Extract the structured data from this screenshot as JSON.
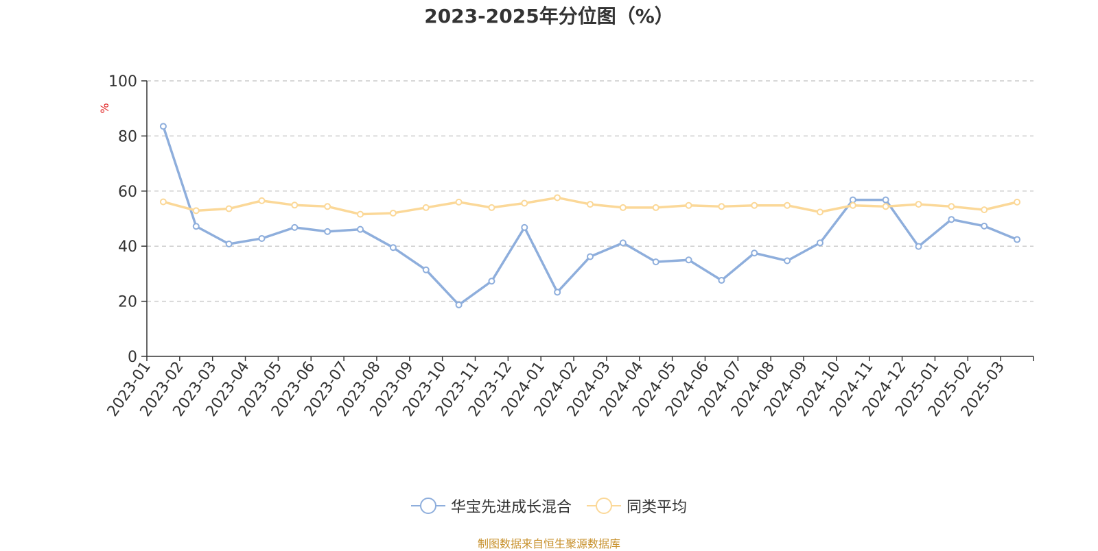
{
  "chart_data": {
    "type": "line",
    "title": "2023-2025年分位图（%）",
    "ylabel": "%",
    "ylim": [
      0,
      100
    ],
    "yticks": [
      0,
      20,
      40,
      60,
      80,
      100
    ],
    "grid": "horizontal dashed",
    "legend_position": "bottom",
    "categories": [
      "2023-01",
      "2023-02",
      "2023-03",
      "2023-04",
      "2023-05",
      "2023-06",
      "2023-07",
      "2023-08",
      "2023-09",
      "2023-10",
      "2023-11",
      "2023-12",
      "2024-01",
      "2024-02",
      "2024-03",
      "2024-04",
      "2024-05",
      "2024-06",
      "2024-07",
      "2024-08",
      "2024-09",
      "2024-10",
      "2024-11",
      "2024-12",
      "2025-01",
      "2025-02",
      "2025-03"
    ],
    "series": [
      {
        "name": "华宝先进成长混合",
        "color": "#8eaedc",
        "values": [
          83.5,
          47.2,
          40.8,
          42.8,
          46.8,
          45.3,
          46.1,
          39.5,
          31.4,
          18.7,
          27.3,
          46.8,
          23.3,
          36.2,
          41.2,
          34.3,
          35.0,
          27.6,
          37.5,
          34.7,
          41.2,
          56.8,
          56.8,
          39.9,
          49.7,
          47.3,
          42.4
        ]
      },
      {
        "name": "同类平均",
        "color": "#fbd898",
        "values": [
          56.1,
          52.9,
          53.6,
          56.5,
          54.9,
          54.4,
          51.6,
          52.0,
          54.0,
          56.0,
          54.0,
          55.6,
          57.6,
          55.2,
          54.0,
          54.0,
          54.8,
          54.4,
          54.8,
          54.8,
          52.4,
          54.8,
          54.4,
          55.2,
          54.4,
          53.2,
          56.0
        ]
      }
    ]
  },
  "source_text": "制图数据来自恒生聚源数据库",
  "colors": {
    "axis": "#333333",
    "grid": "#cccccc",
    "ylabel": "#e02020",
    "title": "#333333",
    "source": "#c8922e"
  }
}
